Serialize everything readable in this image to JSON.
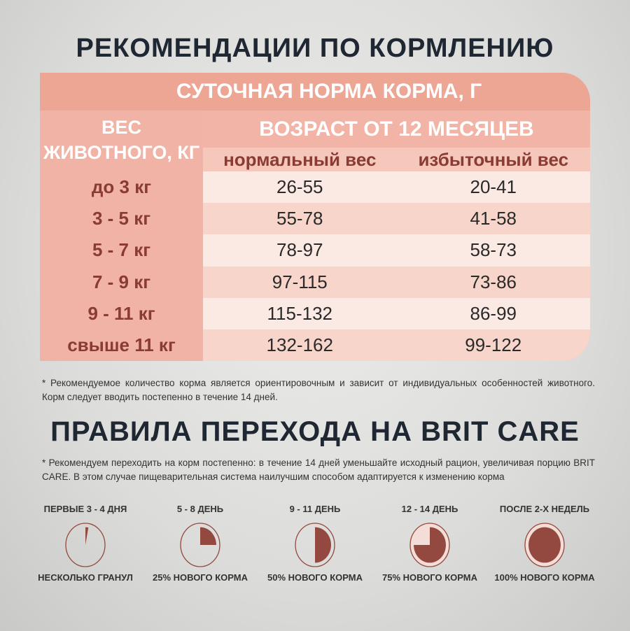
{
  "title": "РЕКОМЕНДАЦИИ ПО КОРМЛЕНИЮ",
  "table": {
    "header": "СУТОЧНАЯ НОРМА КОРМА, Г",
    "weight_label_1": "ВЕС",
    "weight_label_2": "ЖИВОТНОГО, КГ",
    "age_header": "ВОЗРАСТ ОТ 12 МЕСЯЦЕВ",
    "columns": [
      "нормальный вес",
      "избыточный вес"
    ],
    "rows": [
      {
        "weight": "до 3 кг",
        "normal": "26-55",
        "over": "20-41"
      },
      {
        "weight": "3 - 5 кг",
        "normal": "55-78",
        "over": "41-58"
      },
      {
        "weight": "5 - 7 кг",
        "normal": "78-97",
        "over": "58-73"
      },
      {
        "weight": "7 - 9 кг",
        "normal": "97-115",
        "over": "73-86"
      },
      {
        "weight": "9 - 11 кг",
        "normal": "115-132",
        "over": "86-99"
      },
      {
        "weight": "свыше 11 кг",
        "normal": "132-162",
        "over": "99-122"
      }
    ]
  },
  "note1": "* Рекомендуемое количество корма является ориентировочным и зависит от индивидуальных особенностей животного. Корм следует вводить постепенно в течение 14 дней.",
  "title2": "ПРАВИЛА ПЕРЕХОДА НА BRIT CARE",
  "note2": "* Рекомендуем переходить на корм постепенно: в течение 14 дней уменьшайте исходный рацион, увеличивая порцию BRIT CARE. В этом случае пищеварительная система наилучшим способом адаптируется к изменению корма",
  "steps": [
    {
      "label": "ПЕРВЫЕ 3 - 4 ДНЯ",
      "caption": "НЕСКОЛЬКО ГРАНУЛ",
      "fraction": 0.03
    },
    {
      "label": "5 - 8 ДЕНЬ",
      "caption": "25% НОВОГО КОРМА",
      "fraction": 0.25
    },
    {
      "label": "9 - 11 ДЕНЬ",
      "caption": "50% НОВОГО КОРМА",
      "fraction": 0.5
    },
    {
      "label": "12 - 14 ДЕНЬ",
      "caption": "75% НОВОГО КОРМА",
      "fraction": 0.75
    },
    {
      "label": "ПОСЛЕ 2-Х НЕДЕЛЬ",
      "caption": "100% НОВОГО КОРМА",
      "fraction": 1.0
    }
  ],
  "colors": {
    "pie": "#93493f",
    "accent": "#eda594",
    "title": "#1f2733"
  }
}
